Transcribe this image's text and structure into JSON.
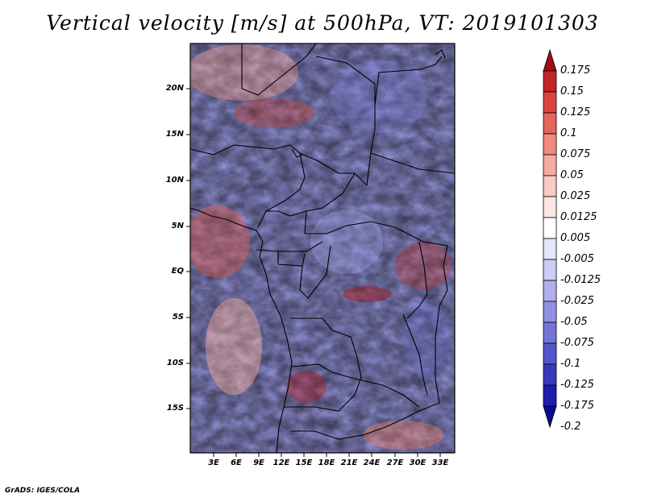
{
  "title": "Vertical velocity [m/s] at 500hPa, VT: 2019101303",
  "credit": "GrADS: IGES/COLA",
  "map": {
    "latitude_labels": [
      "20N",
      "15N",
      "10N",
      "5N",
      "EQ",
      "5S",
      "10S",
      "15S"
    ],
    "longitude_labels": [
      "3E",
      "6E",
      "9E",
      "12E",
      "15E",
      "18E",
      "21E",
      "24E",
      "27E",
      "30E",
      "33E"
    ],
    "background_field": "noisy red/blue vertical velocity field over central Africa",
    "border_color": "#000000"
  },
  "colorbar": {
    "levels": [
      "0.175",
      "0.15",
      "0.125",
      "0.1",
      "0.075",
      "0.05",
      "0.025",
      "0.0125",
      "0.005",
      "-0.005",
      "-0.0125",
      "-0.025",
      "-0.05",
      "-0.075",
      "-0.1",
      "-0.125",
      "-0.175",
      "-0.2"
    ],
    "colors": [
      "#a00c14",
      "#c3242a",
      "#d8453f",
      "#e5665c",
      "#ee8a80",
      "#f5aba3",
      "#f9cbc5",
      "#fde6e3",
      "#ffffff",
      "#e6e6fb",
      "#ccccf4",
      "#afafec",
      "#9191e2",
      "#7373d8",
      "#5555cc",
      "#3838bd",
      "#1e1eab",
      "#0a0a96"
    ]
  }
}
